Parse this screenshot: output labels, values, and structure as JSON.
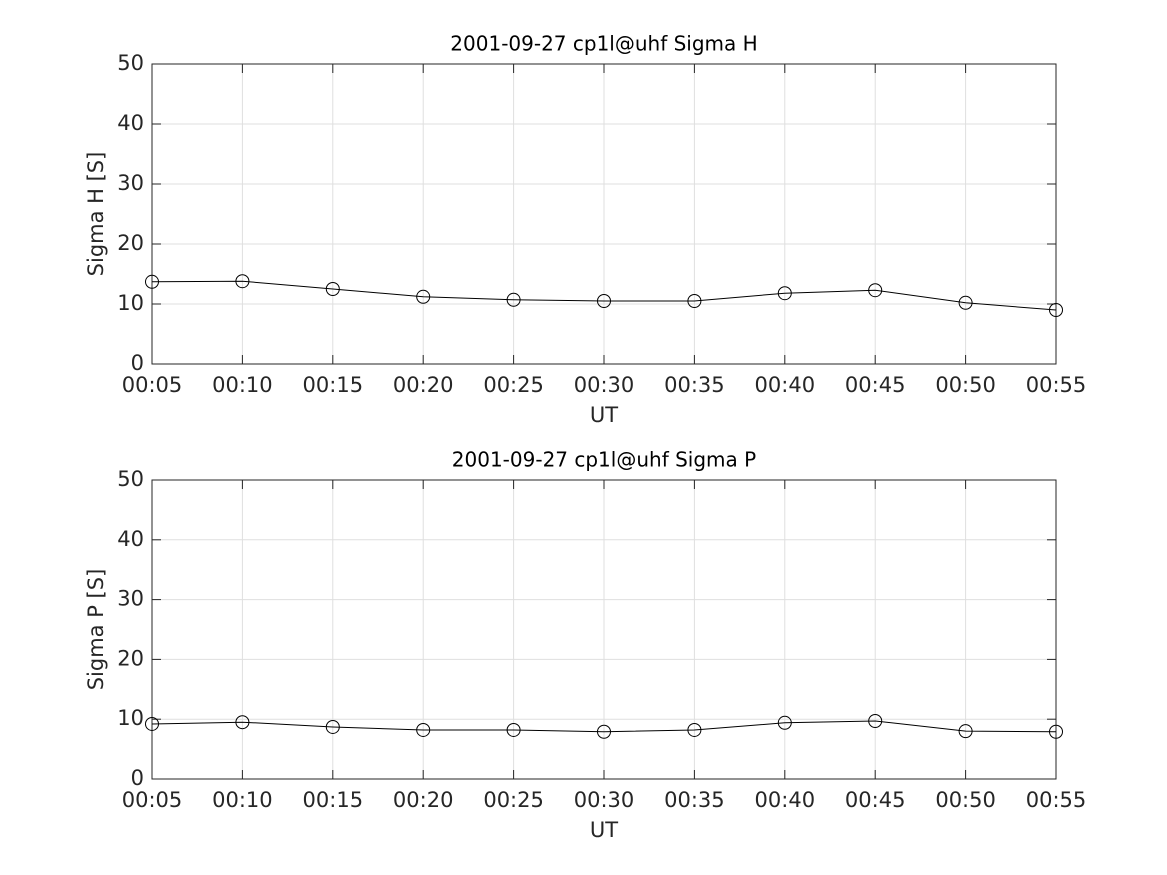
{
  "chart_data": [
    {
      "type": "line",
      "title": "2001-09-27  cp1l@uhf Sigma H",
      "x_label": "UT",
      "y_label": "Sigma H [S]",
      "categories": [
        "00:05",
        "00:10",
        "00:15",
        "00:20",
        "00:25",
        "00:30",
        "00:35",
        "00:40",
        "00:45",
        "00:50",
        "00:55"
      ],
      "series": [
        {
          "name": "Sigma H",
          "color": "#000000",
          "values": [
            13.7,
            13.8,
            12.5,
            11.2,
            10.7,
            10.5,
            10.5,
            11.8,
            12.3,
            10.2,
            9.0
          ]
        }
      ],
      "ylim": [
        0,
        50
      ],
      "yticks": [
        0,
        10,
        20,
        30,
        40,
        50
      ],
      "grid": true
    },
    {
      "type": "line",
      "title": "2001-09-27  cp1l@uhf Sigma P",
      "x_label": "UT",
      "y_label": "Sigma P [S]",
      "categories": [
        "00:05",
        "00:10",
        "00:15",
        "00:20",
        "00:25",
        "00:30",
        "00:35",
        "00:40",
        "00:45",
        "00:50",
        "00:55"
      ],
      "series": [
        {
          "name": "Sigma P",
          "color": "#000000",
          "values": [
            9.2,
            9.5,
            8.7,
            8.2,
            8.2,
            7.9,
            8.2,
            9.4,
            9.7,
            8.0,
            7.9
          ]
        }
      ],
      "ylim": [
        0,
        50
      ],
      "yticks": [
        0,
        10,
        20,
        30,
        40,
        50
      ],
      "grid": true
    }
  ]
}
